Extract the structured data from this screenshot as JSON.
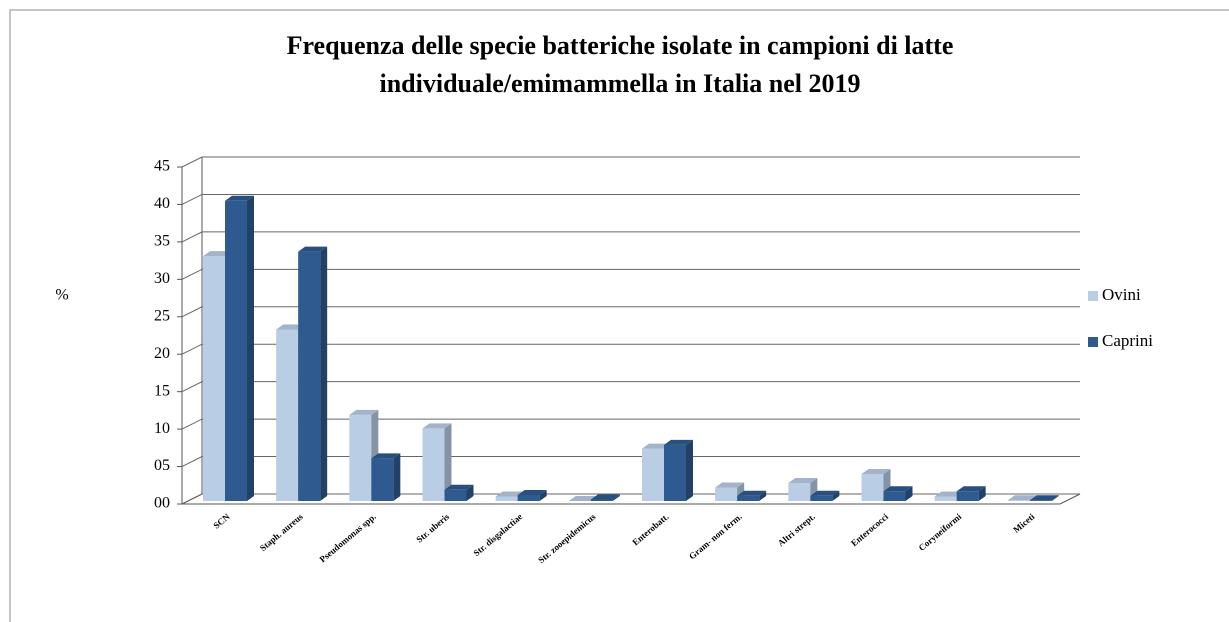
{
  "chart_data": {
    "type": "bar3d",
    "title": "Frequenza delle specie batteriche isolate in campioni di latte",
    "subtitle": "individuale/emimammella in Italia nel 2019",
    "y_label": "%",
    "categories": [
      "SCN",
      "Staph. aureus",
      "Pseudomonas spp.",
      "Str. uberis",
      "Str. disgalactiae",
      "Str. zooepidemicus",
      "Enterobatt.",
      "Gram- non ferm.",
      "Altri strept.",
      "Enterococci",
      "Coryneiformi",
      "Miceti"
    ],
    "series": [
      {
        "name": "Ovini",
        "color": "#b9cde5",
        "values": [
          32.7,
          22.9,
          11.5,
          9.7,
          0.6,
          0,
          7.0,
          1.8,
          2.4,
          3.6,
          0.6,
          0.1
        ]
      },
      {
        "name": "Caprini",
        "color": "#2f5a8f",
        "values": [
          40.1,
          33.3,
          5.7,
          1.5,
          0.8,
          0.2,
          7.5,
          0.7,
          0.7,
          1.3,
          1.3,
          0.1
        ]
      }
    ],
    "ylim": [
      0,
      45
    ],
    "yticks": [
      {
        "value": 0,
        "label": "00"
      },
      {
        "value": 5,
        "label": "05"
      },
      10,
      15,
      20,
      25,
      30,
      35,
      40,
      45
    ],
    "grid": true,
    "legend": "right"
  }
}
